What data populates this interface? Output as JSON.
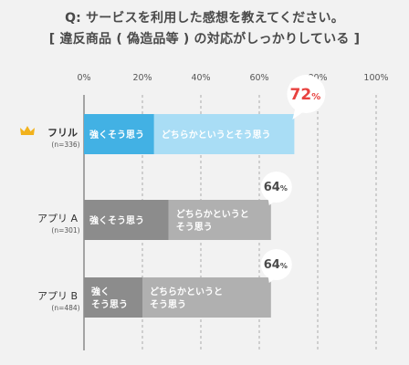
{
  "title_line1": "Q: サービスを利用した感想を教えてください。",
  "title_line2": "[ 違反商品 ( 偽造品等 ) の対応がしっかりしている ]",
  "colors": {
    "background": "#f2f2f2",
    "highlight_strong": "#42b1e4",
    "highlight_weak": "#a9ddf5",
    "gray_strong": "#8c8c8c",
    "gray_weak": "#b0b0b0",
    "highlight_value": "#e8423f",
    "crown": "#f2b21c"
  },
  "chart_data": {
    "type": "bar",
    "orientation": "horizontal",
    "stacked": true,
    "xlim": [
      0,
      100
    ],
    "x_ticks": [
      "0%",
      "20%",
      "40%",
      "60%",
      "80%",
      "100%"
    ],
    "grid": "dashed vertical",
    "categories": [
      {
        "name": "フリル",
        "n": "(n=336)",
        "highlight": true,
        "crown": true,
        "total": "72",
        "unit": "%"
      },
      {
        "name": "アプリ A",
        "n": "(n=301)",
        "highlight": false,
        "crown": false,
        "total": "64",
        "unit": "%"
      },
      {
        "name": "アプリ B",
        "n": "(n=484)",
        "highlight": false,
        "crown": false,
        "total": "64",
        "unit": "%"
      }
    ],
    "series": [
      {
        "name": "強くそう思う",
        "values": [
          24,
          29,
          20
        ],
        "labels": [
          [
            "強くそう思う"
          ],
          [
            "強くそう思う"
          ],
          [
            "強く",
            "そう思う"
          ]
        ]
      },
      {
        "name": "どちらかというとそう思う",
        "values": [
          48,
          35,
          44
        ],
        "labels": [
          [
            "どちらかというとそう思う"
          ],
          [
            "どちらかというと",
            "そう思う"
          ],
          [
            "どちらかというと",
            "そう思う"
          ]
        ]
      }
    ]
  }
}
